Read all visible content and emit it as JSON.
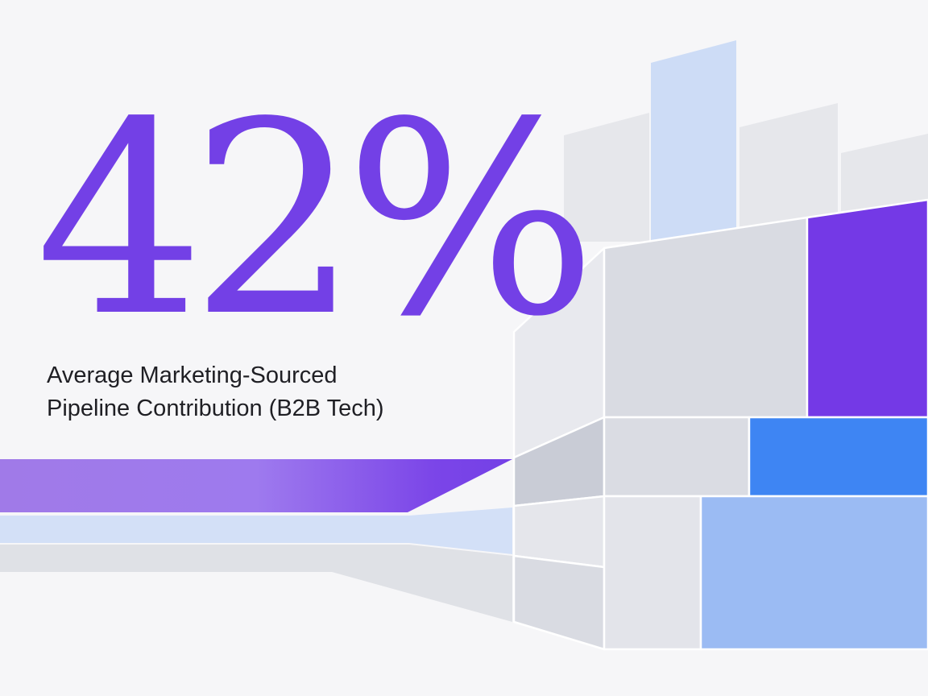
{
  "headline": {
    "value": "42%",
    "caption_line1": "Average Marketing-Sourced",
    "caption_line2": "Pipeline Contribution (B2B Tech)"
  },
  "colors": {
    "accent_purple": "#7340e6",
    "accent_blue": "#3e85f3",
    "light_blue": "#cddcf7",
    "mid_blue": "#9bbbf3",
    "light_gray": "#e4e5ea",
    "mid_gray": "#d6d8df",
    "background": "#f6f6f8"
  }
}
